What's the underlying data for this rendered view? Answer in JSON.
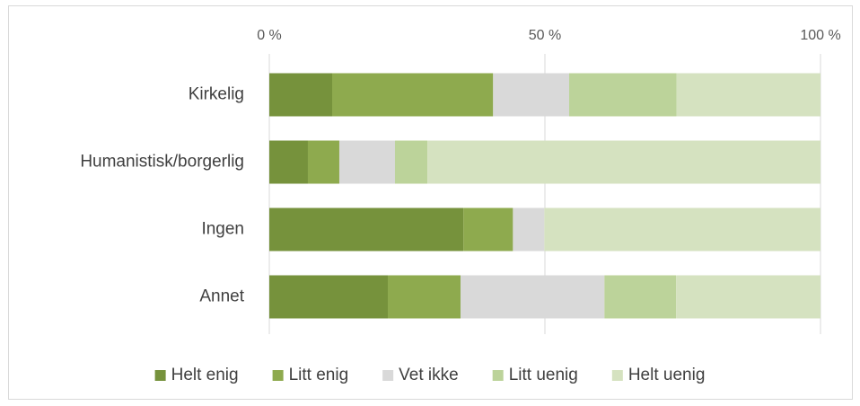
{
  "chart_data": {
    "type": "stacked-barh",
    "categories": [
      "Kirkelig",
      "Humanistisk/borgerlig",
      "Ingen",
      "Annet"
    ],
    "series": [
      {
        "name": "Helt enig",
        "color": "#76923c",
        "values": [
          11.4,
          7.0,
          35.2,
          21.5
        ]
      },
      {
        "name": "Litt enig",
        "color": "#8eaa4e",
        "values": [
          29.2,
          5.7,
          9.0,
          13.2
        ]
      },
      {
        "name": "Vet ikke",
        "color": "#d9d9d9",
        "values": [
          13.8,
          10.1,
          5.7,
          26.1
        ]
      },
      {
        "name": "Litt uenig",
        "color": "#bcd39a",
        "values": [
          19.5,
          5.9,
          0,
          13.0
        ]
      },
      {
        "name": "Helt uenig",
        "color": "#d5e2c0",
        "values": [
          26.1,
          71.3,
          50.1,
          26.2
        ]
      }
    ],
    "xlim": [
      0,
      100
    ],
    "xticks": [
      {
        "value": 0,
        "label": "0 %"
      },
      {
        "value": 50,
        "label": "50 %"
      },
      {
        "value": 100,
        "label": "100 %"
      }
    ],
    "grid": true,
    "legend": "bottom"
  }
}
